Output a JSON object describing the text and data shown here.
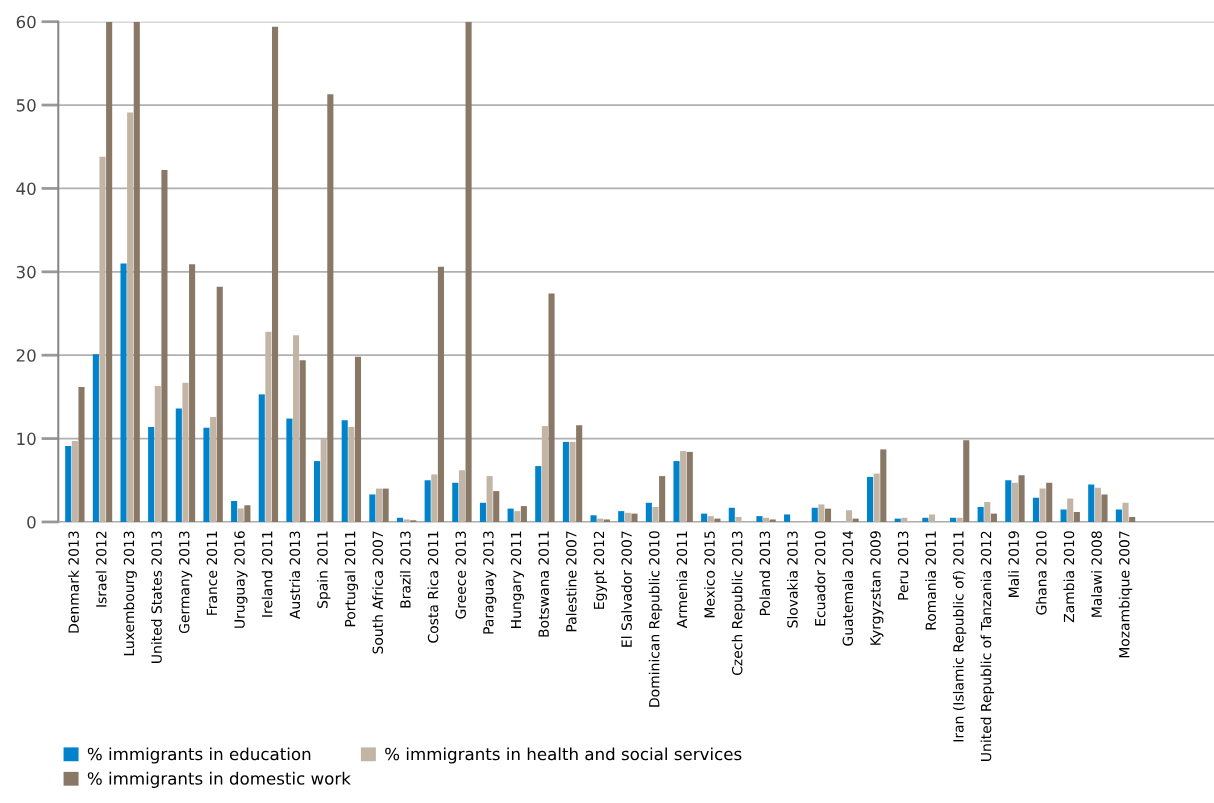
{
  "chart_data": {
    "type": "bar",
    "categories": [
      "Denmark 2013",
      "Israel 2012",
      "Luxembourg 2013",
      "United States 2013",
      "Germany 2013",
      "France 2011",
      "Uruguay 2016",
      "Ireland 2011",
      "Austria 2013",
      "Spain 2011",
      "Portugal 2011",
      "South Africa 2007",
      "Brazil 2013",
      "Costa Rica 2011",
      "Greece 2013",
      "Paraguay 2013",
      "Hungary 2011",
      "Botswana 2011",
      "Palestine 2007",
      "Egypt 2012",
      "El Salvador 2007",
      "Dominican Republic 2010",
      "Armenia 2011",
      "Mexico 2015",
      "Czech Republic 2013",
      "Poland 2013",
      "Slovakia 2013",
      "Ecuador 2010",
      "Guatemala 2014",
      "Kyrgyzstan 2009",
      "Peru 2013",
      "Romania 2011",
      "Iran (Islamic Republic of) 2011",
      "United Republic of Tanzania 2012",
      "Mali 2019",
      "Ghana 2010",
      "Zambia 2010",
      "Malawi 2008",
      "Mozambique 2007"
    ],
    "series": [
      {
        "name": "% immigrants in education",
        "color": "#0083cb",
        "values": [
          9.1,
          20.1,
          31.0,
          11.4,
          13.6,
          11.3,
          2.5,
          15.3,
          12.4,
          7.3,
          12.2,
          3.3,
          0.5,
          5.0,
          4.7,
          2.3,
          1.6,
          6.7,
          9.6,
          0.8,
          1.3,
          2.3,
          7.3,
          1.0,
          1.7,
          0.7,
          0.9,
          1.7,
          null,
          5.4,
          0.4,
          0.5,
          0.5,
          1.8,
          5.0,
          2.9,
          1.5,
          4.5,
          1.5
        ]
      },
      {
        "name": "% immigrants in health and social services",
        "color": "#c2b5a6",
        "values": [
          9.7,
          43.8,
          49.1,
          16.3,
          16.7,
          12.6,
          1.6,
          22.8,
          22.4,
          10.0,
          11.4,
          4.0,
          0.3,
          5.7,
          6.2,
          5.5,
          1.3,
          11.5,
          9.6,
          0.4,
          1.1,
          1.8,
          8.5,
          0.7,
          0.6,
          0.5,
          null,
          2.1,
          1.4,
          5.8,
          0.5,
          0.9,
          0.5,
          2.4,
          4.7,
          4.0,
          2.8,
          4.1,
          2.3
        ]
      },
      {
        "name": "% immigrants in domestic work",
        "color": "#8a7866",
        "values": [
          16.2,
          60,
          60,
          42.2,
          30.9,
          28.2,
          2.0,
          59.4,
          19.4,
          51.3,
          19.8,
          4.0,
          0.2,
          30.6,
          60,
          3.7,
          1.9,
          27.4,
          11.6,
          0.3,
          1.0,
          5.5,
          8.4,
          0.4,
          null,
          0.3,
          null,
          1.6,
          0.4,
          8.7,
          null,
          null,
          9.8,
          1.0,
          5.6,
          4.7,
          1.2,
          3.3,
          0.6
        ]
      }
    ],
    "ylim": [
      0,
      60
    ],
    "yticks": [
      0,
      10,
      20,
      30,
      40,
      50,
      60
    ],
    "grid": "y",
    "legend": "bottom left"
  }
}
